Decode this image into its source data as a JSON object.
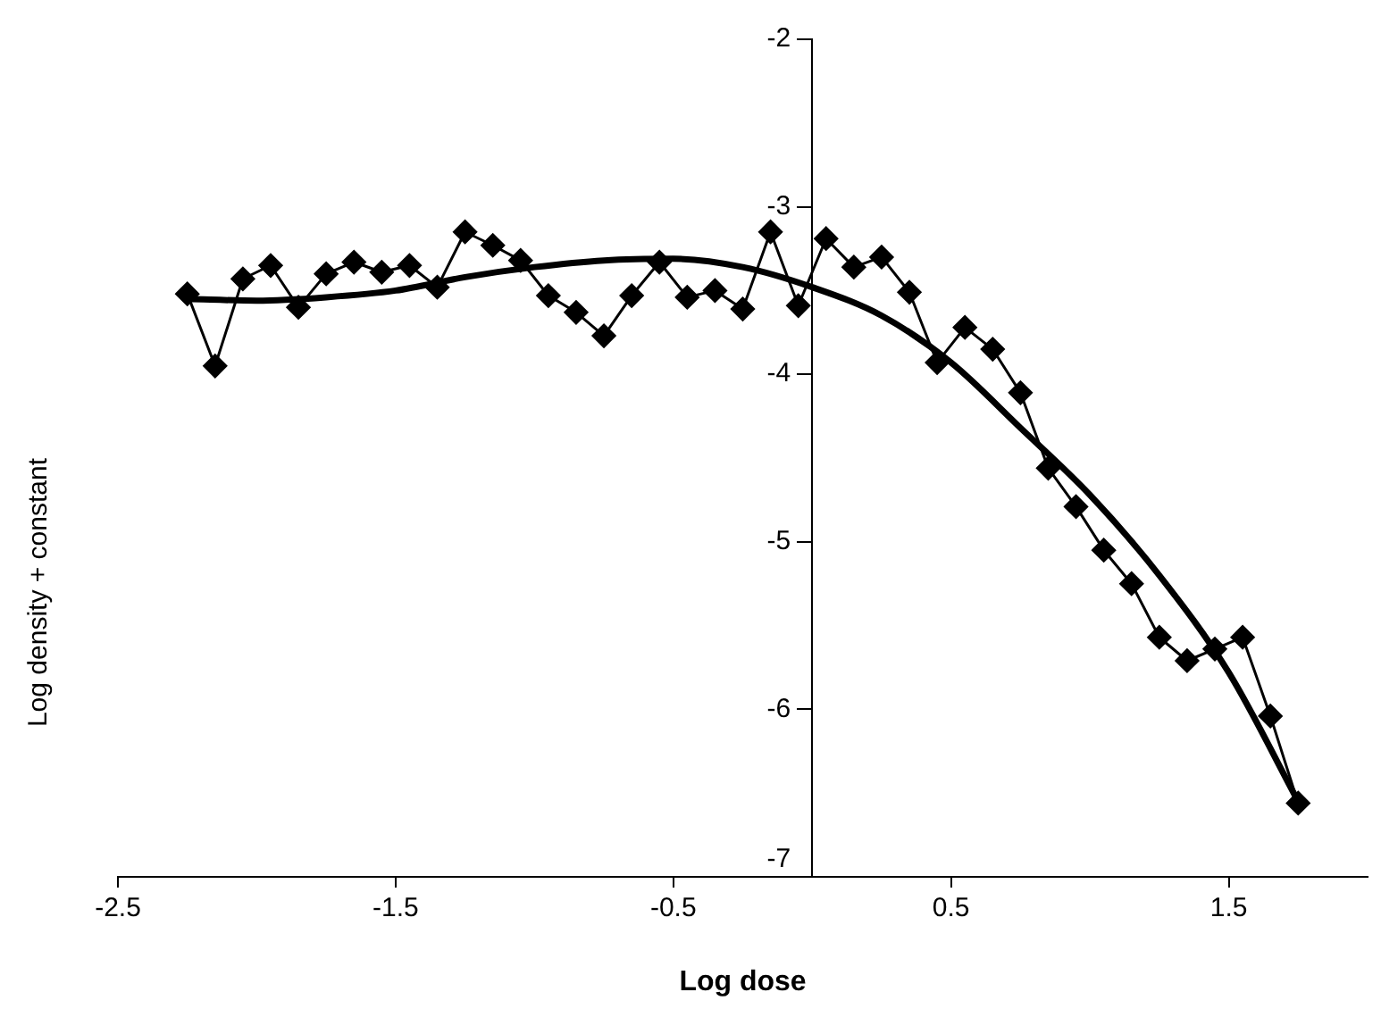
{
  "chart_data": {
    "type": "line",
    "xlabel": "Log dose",
    "ylabel": "Log density + constant",
    "xlim": [
      -2.5,
      2
    ],
    "ylim": [
      -7,
      -2
    ],
    "xticks": [
      -2.5,
      -1.5,
      -0.5,
      0.5,
      1.5
    ],
    "yticks": [
      -7,
      -6,
      -5,
      -4,
      -3,
      -2
    ],
    "grid": false,
    "legend": false,
    "line_style": "solid",
    "series": [
      {
        "type": "line",
        "color": "#000000",
        "marker": "diamond",
        "x": [
          -2.25,
          -2.15,
          -2.05,
          -1.95,
          -1.85,
          -1.75,
          -1.65,
          -1.55,
          -1.45,
          -1.35,
          -1.25,
          -1.15,
          -1.05,
          -0.95,
          -0.85,
          -0.75,
          -0.65,
          -0.55,
          -0.45,
          -0.35,
          -0.25,
          -0.15,
          -0.05,
          0.05,
          0.15,
          0.25,
          0.35,
          0.45,
          0.55,
          0.65,
          0.75,
          0.85,
          0.95,
          1.05,
          1.15,
          1.25,
          1.35,
          1.45,
          1.55,
          1.65,
          1.75
        ],
        "values": [
          -3.52,
          -3.95,
          -3.43,
          -3.35,
          -3.6,
          -3.4,
          -3.33,
          -3.39,
          -3.35,
          -3.48,
          -3.15,
          -3.23,
          -3.32,
          -3.53,
          -3.63,
          -3.77,
          -3.53,
          -3.33,
          -3.54,
          -3.5,
          -3.61,
          -3.15,
          -3.59,
          -3.19,
          -3.36,
          -3.3,
          -3.51,
          -3.93,
          -3.72,
          -3.85,
          -4.11,
          -4.56,
          -4.79,
          -5.05,
          -5.25,
          -5.57,
          -5.71,
          -5.64,
          -5.57,
          -6.04,
          -6.56
        ]
      },
      {
        "type": "line",
        "color": "#000000",
        "marker": "none",
        "x": [
          -2.25,
          -2,
          -1.75,
          -1.5,
          -1.25,
          -1,
          -0.75,
          -0.5,
          -0.25,
          0,
          0.25,
          0.5,
          0.75,
          1,
          1.25,
          1.5,
          1.75
        ],
        "values": [
          -3.55,
          -3.56,
          -3.54,
          -3.5,
          -3.42,
          -3.36,
          -3.32,
          -3.31,
          -3.36,
          -3.48,
          -3.65,
          -3.93,
          -4.32,
          -4.72,
          -5.2,
          -5.78,
          -6.55
        ]
      }
    ]
  }
}
